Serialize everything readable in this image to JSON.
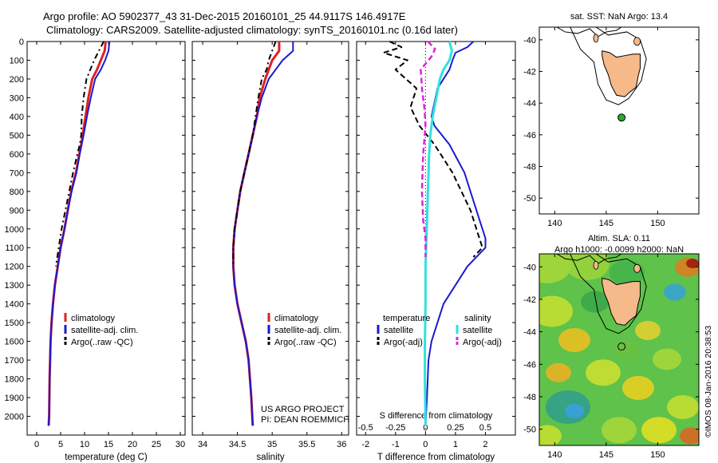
{
  "header": {
    "title_line1": "Argo profile: AO 5902377_43 31-Dec-2015 20160101_25 44.9117S 146.4917E",
    "title_line2": "Climatology: CARS2009. Satellite-adjusted climatology: synTS_20160101.nc (0.16d later)"
  },
  "colors": {
    "climatology": "#e02020",
    "satellite": "#1a1ad0",
    "argo": "#000000",
    "salinity_satellite": "#30e0e0",
    "salinity_argo": "#e020e0",
    "land": "#f5b98a",
    "float_marker": "#2ea82e"
  },
  "chart_data": [
    {
      "type": "line",
      "name": "temperature-profile",
      "xlabel": "temperature (deg C)",
      "ylabel": "",
      "xlim": [
        -2,
        31
      ],
      "ylim": [
        2100,
        0
      ],
      "xticks": [
        0,
        5,
        10,
        15,
        20,
        25,
        30
      ],
      "yticks": [
        0,
        100,
        200,
        300,
        400,
        500,
        600,
        700,
        800,
        900,
        1000,
        1100,
        1200,
        1300,
        1400,
        1500,
        1600,
        1700,
        1800,
        1900,
        2000
      ],
      "legend": [
        "climatology",
        "satellite-adj. clim.",
        "Argo(..raw -QC)"
      ],
      "legend_position": "bottom-center",
      "series": [
        {
          "name": "climatology",
          "x": [
            14.4,
            14.2,
            13.4,
            12.6,
            11.6,
            10.8,
            10.2,
            9.6,
            9.3,
            8.9,
            8.2,
            7.2,
            6.5,
            5.8,
            5.0,
            4.4,
            3.8,
            3.4,
            3.1,
            2.9,
            2.7,
            2.6,
            2.5
          ],
          "y": [
            0,
            50,
            100,
            150,
            200,
            300,
            400,
            500,
            550,
            600,
            700,
            800,
            900,
            1000,
            1100,
            1200,
            1300,
            1400,
            1500,
            1600,
            1800,
            2000,
            2050
          ]
        },
        {
          "name": "satellite-adj. clim.",
          "x": [
            15.2,
            15.0,
            14.3,
            13.4,
            12.2,
            11.3,
            10.5,
            9.8,
            9.4,
            9.0,
            8.3,
            7.3,
            6.5,
            5.8,
            5.0,
            4.4,
            3.8,
            3.4,
            3.1,
            2.9,
            2.7,
            2.6,
            2.5
          ],
          "y": [
            0,
            50,
            100,
            150,
            200,
            300,
            400,
            500,
            550,
            600,
            700,
            800,
            900,
            1000,
            1100,
            1200,
            1300,
            1400,
            1500,
            1600,
            1800,
            2000,
            2050
          ]
        },
        {
          "name": "Argo(..raw -QC)",
          "x": [
            14.0,
            13.0,
            12.0,
            11.2,
            10.4,
            9.8,
            9.4,
            9.3,
            9.0,
            8.5,
            7.6,
            6.8,
            6.0,
            5.2,
            4.6,
            4.0
          ],
          "y": [
            0,
            50,
            100,
            150,
            200,
            300,
            400,
            500,
            550,
            600,
            700,
            800,
            900,
            1000,
            1100,
            1200
          ]
        }
      ]
    },
    {
      "type": "line",
      "name": "salinity-profile",
      "xlabel": "salinity",
      "ylabel": "",
      "xlim": [
        33.85,
        36.1
      ],
      "ylim": [
        2100,
        0
      ],
      "xticks": [
        34,
        34.5,
        35,
        35.5,
        36
      ],
      "xticklabels": [
        "34",
        "34.5",
        "35",
        "35.5",
        "36"
      ],
      "legend": [
        "climatology",
        "satellite-adj. clim.",
        "Argo(..raw -QC)"
      ],
      "legend_position": "bottom-center",
      "annotation": [
        "US ARGO PROJECT",
        "PI: DEAN ROEMMICH"
      ],
      "series": [
        {
          "name": "climatology",
          "x": [
            35.1,
            35.1,
            35.0,
            34.95,
            34.9,
            34.82,
            34.78,
            34.72,
            34.66,
            34.6,
            34.54,
            34.5,
            34.46,
            34.44,
            34.44,
            34.46,
            34.5,
            34.56,
            34.62,
            34.66,
            34.7,
            34.72
          ],
          "y": [
            0,
            50,
            100,
            150,
            200,
            300,
            400,
            500,
            600,
            700,
            800,
            900,
            1000,
            1100,
            1200,
            1300,
            1400,
            1500,
            1600,
            1700,
            1900,
            2050
          ]
        },
        {
          "name": "satellite-adj. clim.",
          "x": [
            35.3,
            35.3,
            35.15,
            35.05,
            34.95,
            34.85,
            34.78,
            34.72,
            34.66,
            34.6,
            34.54,
            34.5,
            34.46,
            34.44,
            34.44,
            34.46,
            34.5,
            34.56,
            34.62,
            34.66,
            34.7,
            34.72
          ],
          "y": [
            0,
            50,
            100,
            150,
            200,
            300,
            400,
            500,
            600,
            700,
            800,
            900,
            1000,
            1100,
            1200,
            1300,
            1400,
            1500,
            1600,
            1700,
            1900,
            2050
          ]
        },
        {
          "name": "Argo(..raw -QC)",
          "x": [
            35.05,
            35.0,
            34.95,
            34.92,
            34.85,
            34.8,
            34.72,
            34.66,
            34.6,
            34.54,
            34.5,
            34.46,
            34.44,
            34.44
          ],
          "y": [
            0,
            50,
            100,
            150,
            200,
            300,
            500,
            600,
            700,
            800,
            900,
            1000,
            1100,
            1200
          ]
        }
      ]
    },
    {
      "type": "line",
      "name": "difference-profile",
      "xlabel": "T difference from climatology",
      "x2label": "S difference from climatology",
      "xlim": [
        -2.3,
        3.0
      ],
      "x2lim": [
        -0.575,
        0.75
      ],
      "ylim": [
        2100,
        0
      ],
      "xticks": [
        -2,
        -1,
        0,
        1,
        2
      ],
      "x2ticks": [
        -0.5,
        -0.25,
        0,
        0.25,
        0.5
      ],
      "x2ticklabels": [
        "-0.5",
        "-0.25",
        "0",
        "0.25",
        "0.5"
      ],
      "legend_titles": [
        "temperature",
        "salinity"
      ],
      "legend": [
        "satellite",
        "Argo(-adj)",
        "satellite",
        "Argo(-adj)"
      ],
      "legend_position": "bottom-center",
      "series": [
        {
          "name": "satellite",
          "quantity": "temperature",
          "x": [
            1.6,
            1.4,
            1.0,
            0.9,
            0.8,
            0.4,
            0.2,
            0.3,
            0.8,
            1.3,
            1.6,
            1.8,
            2.0,
            2.0,
            1.4,
            1.0,
            0.6,
            0.4,
            0.2,
            0.1,
            0.05,
            0.0
          ],
          "y": [
            0,
            30,
            60,
            100,
            150,
            250,
            400,
            450,
            550,
            700,
            850,
            950,
            1050,
            1100,
            1200,
            1300,
            1400,
            1500,
            1600,
            1700,
            1900,
            2050
          ]
        },
        {
          "name": "Argo(-adj)",
          "quantity": "temperature",
          "x": [
            -1.2,
            -0.8,
            -1.4,
            -0.6,
            -1.0,
            -0.3,
            -0.5,
            -0.2,
            0.3,
            0.9,
            1.2,
            1.5,
            1.7,
            1.9,
            1.6
          ],
          "y": [
            0,
            30,
            60,
            100,
            150,
            250,
            350,
            450,
            550,
            700,
            800,
            900,
            1000,
            1100,
            1150
          ]
        },
        {
          "name": "satellite",
          "quantity": "salinity",
          "x": [
            0.2,
            0.22,
            0.2,
            0.15,
            0.12,
            0.09,
            0.06,
            0.04,
            0.03,
            0.02,
            0.01,
            0.0,
            0.0,
            -0.005,
            -0.005,
            0.0
          ],
          "y": [
            0,
            50,
            100,
            150,
            200,
            300,
            400,
            500,
            600,
            800,
            1000,
            1200,
            1400,
            1600,
            1800,
            2050
          ]
        },
        {
          "name": "Argo(-adj)",
          "quantity": "salinity",
          "x": [
            0.02,
            0.08,
            0.05,
            -0.04,
            -0.03,
            -0.01,
            0.0,
            -0.02,
            -0.03,
            -0.02,
            0.0,
            0.0
          ],
          "y": [
            0,
            40,
            80,
            150,
            250,
            350,
            450,
            600,
            800,
            950,
            1050,
            1150
          ]
        }
      ]
    },
    {
      "type": "scatter",
      "name": "sst-map",
      "title": "sat. SST: NaN Argo: 13.4",
      "xlim": [
        138.5,
        154
      ],
      "ylim": [
        -51,
        -39.2
      ],
      "xticks": [
        140,
        145,
        150
      ],
      "yticks": [
        -40,
        -42,
        -44,
        -46,
        -48,
        -50
      ],
      "series": [
        {
          "name": "",
          "x": [
            146.49
          ],
          "y": [
            -44.91
          ]
        }
      ]
    },
    {
      "type": "heatmap",
      "name": "sla-map",
      "title_lines": [
        "Altim. SLA: 0.11",
        "Argo h1000: -0.0099 h2000: NaN"
      ],
      "xlim": [
        138.5,
        154
      ],
      "ylim": [
        -51,
        -39.2
      ],
      "xticks": [
        140,
        145,
        150
      ],
      "yticks": [
        -40,
        -42,
        -44,
        -46,
        -48,
        -50
      ],
      "series": [
        {
          "name": "",
          "x": [
            146.49
          ],
          "y": [
            -44.91
          ]
        }
      ]
    }
  ],
  "footer": {
    "timestamp": "©IMOS 08-Jan-2016 20:38:53"
  }
}
